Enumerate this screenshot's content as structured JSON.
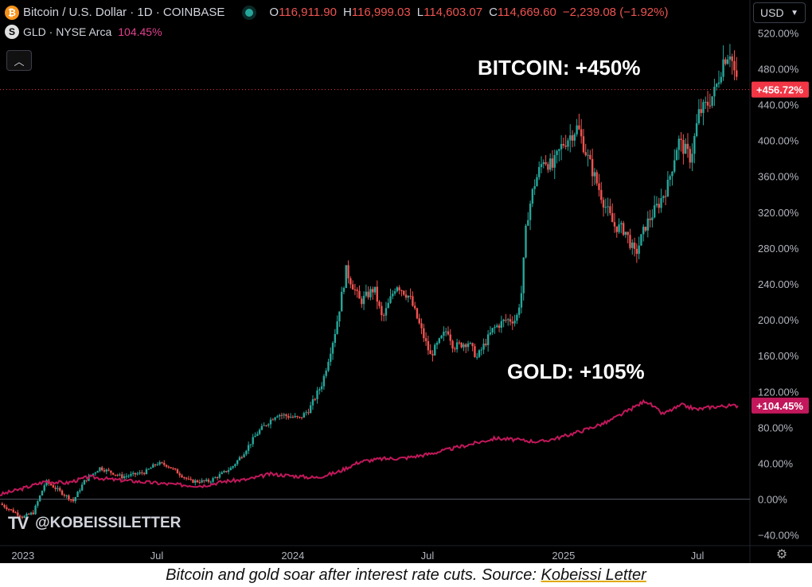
{
  "header": {
    "symbol_icon": "bitcoin-icon",
    "symbol_title": "Bitcoin / U.S. Dollar · 1D · COINBASE",
    "open_key": "O",
    "open": "116,911.90",
    "high_key": "H",
    "high": "116,999.03",
    "low_key": "L",
    "low": "114,603.07",
    "close_key": "C",
    "close": "114,669.60",
    "change": "−2,239.08 (−1.92%)",
    "currency": "USD"
  },
  "compare": {
    "icon": "S",
    "label": "GLD · NYSE Arca",
    "value": "104.45%"
  },
  "annotations": {
    "bitcoin": "BITCOIN: +450%",
    "gold": "GOLD: +105%"
  },
  "watermark": {
    "logo": "TV",
    "handle": "@KOBEISSILETTER"
  },
  "caption": {
    "text": "Bitcoin and gold soar after interest rate cuts. Source: ",
    "link": "Kobeissi Letter"
  },
  "colors": {
    "up": "#26a69a",
    "down": "#ef5350",
    "gold": "#c2185b",
    "btc_badge": "#f23645",
    "gld_badge": "#c2185b",
    "bitcoin_logo": "#f7931a"
  },
  "chart_data": {
    "type": "line",
    "y_unit": "%",
    "ylim": [
      -50,
      530
    ],
    "y_ticks": [
      -40,
      0,
      40,
      80,
      120,
      160,
      200,
      240,
      280,
      320,
      360,
      400,
      440,
      480,
      520
    ],
    "y_tick_labels": [
      "−40.00%",
      "0.00%",
      "40.00%",
      "80.00%",
      "120.00%",
      "160.00%",
      "200.00%",
      "240.00%",
      "280.00%",
      "320.00%",
      "360.00%",
      "400.00%",
      "440.00%",
      "480.00%",
      "520.00%"
    ],
    "x_ticks": [
      {
        "date": "2023-01-01",
        "label": "2023"
      },
      {
        "date": "2023-07-01",
        "label": "Jul"
      },
      {
        "date": "2024-01-01",
        "label": "2024"
      },
      {
        "date": "2024-07-01",
        "label": "Jul"
      },
      {
        "date": "2025-01-01",
        "label": "2025"
      },
      {
        "date": "2025-07-01",
        "label": "Jul"
      }
    ],
    "xlim": [
      "2022-12-01",
      "2025-09-10"
    ],
    "series": [
      {
        "name": "Bitcoin / U.S. Dollar",
        "style": "candlestick",
        "last_label": "+456.72%",
        "last_value": 456.72,
        "x": [
          "2022-12-01",
          "2023-01-01",
          "2023-01-15",
          "2023-02-01",
          "2023-03-10",
          "2023-03-25",
          "2023-04-15",
          "2023-05-15",
          "2023-06-15",
          "2023-07-01",
          "2023-07-15",
          "2023-08-15",
          "2023-09-10",
          "2023-10-10",
          "2023-10-25",
          "2023-11-15",
          "2023-12-10",
          "2024-01-10",
          "2024-01-23",
          "2024-02-10",
          "2024-02-28",
          "2024-03-13",
          "2024-04-01",
          "2024-04-20",
          "2024-05-01",
          "2024-05-20",
          "2024-06-07",
          "2024-07-05",
          "2024-07-28",
          "2024-08-05",
          "2024-08-25",
          "2024-09-06",
          "2024-09-28",
          "2024-10-15",
          "2024-10-29",
          "2024-11-05",
          "2024-11-12",
          "2024-11-22",
          "2024-12-05",
          "2024-12-17",
          "2024-12-30",
          "2025-01-20",
          "2025-02-03",
          "2025-02-25",
          "2025-03-10",
          "2025-03-25",
          "2025-04-08",
          "2025-04-22",
          "2025-05-10",
          "2025-05-22",
          "2025-06-05",
          "2025-06-22",
          "2025-07-03",
          "2025-07-14",
          "2025-07-25",
          "2025-08-05",
          "2025-08-14",
          "2025-08-25"
        ],
        "values": [
          -5,
          -20,
          -15,
          20,
          -2,
          20,
          35,
          25,
          30,
          40,
          38,
          20,
          20,
          35,
          50,
          75,
          95,
          90,
          100,
          130,
          190,
          255,
          220,
          235,
          200,
          240,
          225,
          160,
          190,
          170,
          175,
          158,
          190,
          200,
          200,
          230,
          310,
          350,
          380,
          370,
          395,
          415,
          380,
          330,
          305,
          300,
          272,
          305,
          330,
          350,
          400,
          380,
          430,
          440,
          455,
          490,
          500,
          456.72
        ]
      },
      {
        "name": "GLD · NYSE Arca",
        "style": "line",
        "last_label": "+104.45%",
        "last_value": 104.45,
        "x": [
          "2022-12-01",
          "2023-01-01",
          "2023-02-01",
          "2023-03-01",
          "2023-04-01",
          "2023-05-01",
          "2023-06-01",
          "2023-07-01",
          "2023-08-01",
          "2023-09-01",
          "2023-10-01",
          "2023-11-01",
          "2023-12-01",
          "2024-01-01",
          "2024-02-01",
          "2024-03-01",
          "2024-04-01",
          "2024-05-01",
          "2024-06-01",
          "2024-07-01",
          "2024-08-01",
          "2024-09-01",
          "2024-10-01",
          "2024-11-01",
          "2024-12-01",
          "2025-01-01",
          "2025-02-01",
          "2025-03-01",
          "2025-04-01",
          "2025-04-22",
          "2025-05-15",
          "2025-06-10",
          "2025-07-01",
          "2025-07-20",
          "2025-08-10",
          "2025-08-25"
        ],
        "values": [
          5,
          12,
          20,
          18,
          25,
          22,
          20,
          18,
          16,
          15,
          20,
          22,
          28,
          26,
          24,
          30,
          42,
          45,
          46,
          50,
          56,
          62,
          68,
          66,
          64,
          70,
          78,
          86,
          100,
          110,
          95,
          105,
          100,
          103,
          104,
          104.45
        ]
      }
    ]
  }
}
